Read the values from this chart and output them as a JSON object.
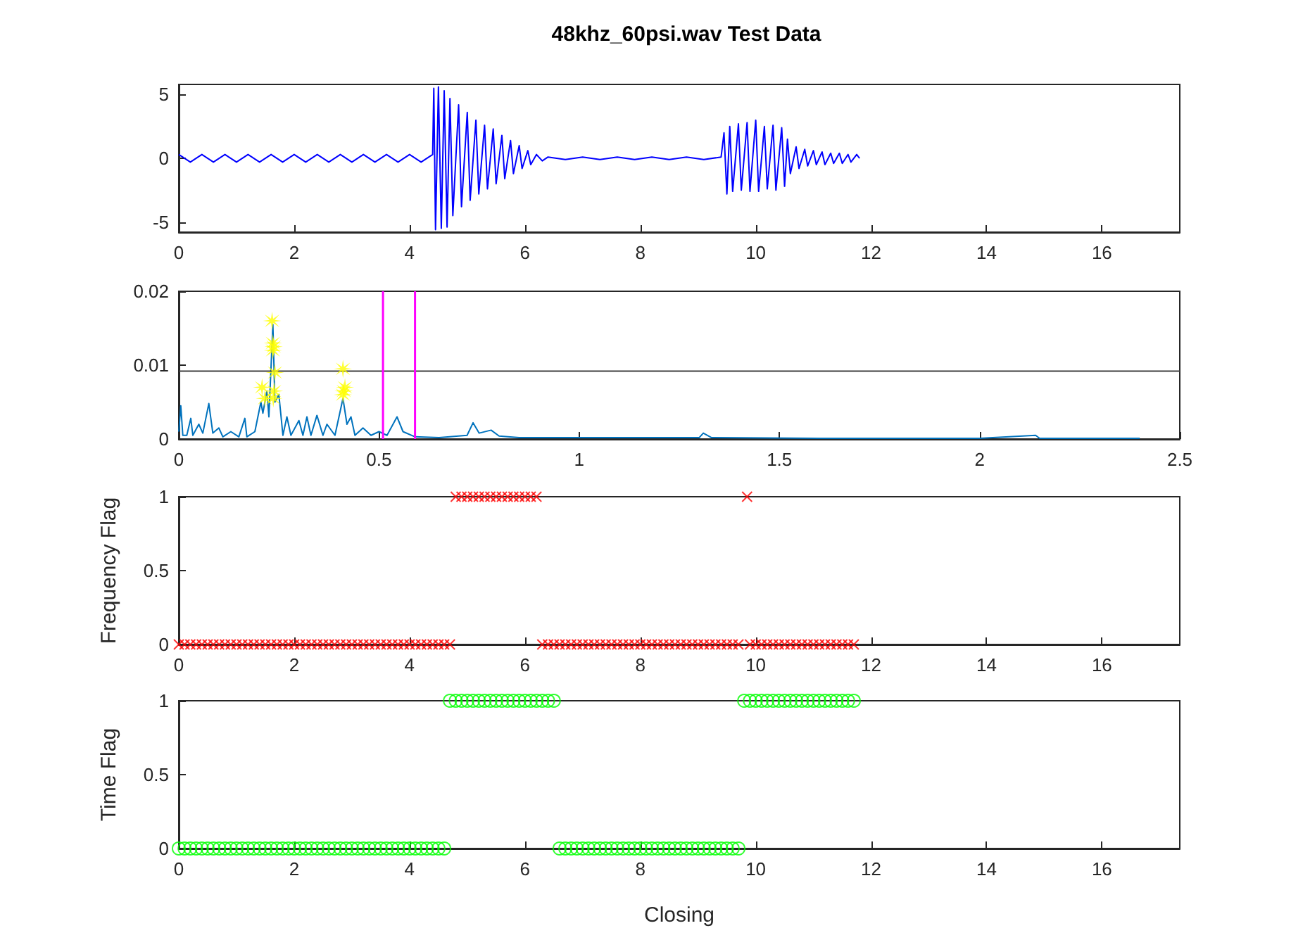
{
  "chart_data": [
    {
      "type": "line",
      "title": "48khz_60psi.wav Test Data",
      "xlim": [
        0,
        17.35
      ],
      "xticks": [
        0,
        2,
        4,
        6,
        8,
        10,
        12,
        14,
        16
      ],
      "ylim": [
        -5.8,
        5.8
      ],
      "yticks": [
        -5,
        0,
        5
      ],
      "series": [
        {
          "color": "#0000ff",
          "marker": "none",
          "x": [
            0,
            0.2,
            0.4,
            0.6,
            0.8,
            1.0,
            1.2,
            1.4,
            1.6,
            1.8,
            2.0,
            2.2,
            2.4,
            2.6,
            2.8,
            3.0,
            3.2,
            3.4,
            3.6,
            3.8,
            4.0,
            4.2,
            4.4,
            4.42,
            4.45,
            4.5,
            4.55,
            4.6,
            4.65,
            4.7,
            4.75,
            4.85,
            4.9,
            5.0,
            5.05,
            5.15,
            5.2,
            5.3,
            5.35,
            5.45,
            5.5,
            5.6,
            5.65,
            5.75,
            5.8,
            5.9,
            5.95,
            6.05,
            6.1,
            6.2,
            6.3,
            6.4,
            6.7,
            7.0,
            7.3,
            7.6,
            7.9,
            8.2,
            8.5,
            8.8,
            9.1,
            9.4,
            9.45,
            9.5,
            9.55,
            9.6,
            9.7,
            9.75,
            9.85,
            9.9,
            10.0,
            10.05,
            10.15,
            10.2,
            10.3,
            10.35,
            10.45,
            10.5,
            10.55,
            10.6,
            10.7,
            10.75,
            10.85,
            10.9,
            11.0,
            11.05,
            11.15,
            11.2,
            11.3,
            11.35,
            11.45,
            11.5,
            11.6,
            11.65,
            11.75,
            11.8
          ],
          "values": [
            0.3,
            -0.3,
            0.3,
            -0.3,
            0.3,
            -0.3,
            0.3,
            -0.3,
            0.3,
            -0.3,
            0.3,
            -0.3,
            0.3,
            -0.3,
            0.3,
            -0.3,
            0.3,
            -0.3,
            0.3,
            -0.3,
            0.3,
            -0.3,
            0.3,
            5.5,
            -5.6,
            5.6,
            -5.5,
            5.3,
            -5.4,
            4.7,
            -4.5,
            4.2,
            -3.8,
            3.6,
            -3.3,
            3.0,
            -2.8,
            2.6,
            -2.4,
            2.3,
            -2.0,
            1.8,
            -1.6,
            1.4,
            -1.2,
            1.0,
            -0.8,
            0.6,
            -0.5,
            0.3,
            -0.2,
            0.1,
            -0.1,
            0.1,
            -0.1,
            0.1,
            -0.1,
            0.1,
            -0.1,
            0.1,
            -0.1,
            0.1,
            2.0,
            -2.8,
            2.5,
            -2.6,
            2.7,
            -2.5,
            2.8,
            -2.6,
            3.0,
            -2.6,
            2.5,
            -2.4,
            2.6,
            -2.5,
            2.4,
            -2.2,
            1.5,
            -1.2,
            0.9,
            -0.8,
            0.7,
            -0.6,
            0.6,
            -0.5,
            0.5,
            -0.5,
            0.4,
            -0.4,
            0.4,
            -0.4,
            0.3,
            -0.3,
            0.3,
            0
          ]
        }
      ]
    },
    {
      "type": "line",
      "xlim": [
        0,
        2.5
      ],
      "xticks": [
        0,
        0.5,
        1,
        1.5,
        2,
        2.5
      ],
      "ylim": [
        0,
        0.02
      ],
      "yticks": [
        0,
        0.01,
        0.02
      ],
      "series": [
        {
          "color": "#0072bd",
          "marker": "none",
          "x": [
            0,
            0.005,
            0.01,
            0.02,
            0.03,
            0.035,
            0.05,
            0.06,
            0.075,
            0.085,
            0.1,
            0.11,
            0.13,
            0.15,
            0.165,
            0.17,
            0.19,
            0.205,
            0.21,
            0.22,
            0.225,
            0.235,
            0.24,
            0.25,
            0.26,
            0.27,
            0.28,
            0.3,
            0.31,
            0.32,
            0.33,
            0.345,
            0.36,
            0.37,
            0.39,
            0.41,
            0.42,
            0.43,
            0.44,
            0.46,
            0.48,
            0.5,
            0.52,
            0.545,
            0.56,
            0.59,
            0.65,
            0.72,
            0.735,
            0.75,
            0.78,
            0.8,
            0.85,
            1.0,
            1.3,
            1.31,
            1.33,
            1.6,
            2.0,
            2.14,
            2.15,
            2.4
          ],
          "values": [
            0.001,
            0.0045,
            0.0005,
            0.0005,
            0.0028,
            0.0005,
            0.002,
            0.0008,
            0.0048,
            0.0008,
            0.0015,
            0.0003,
            0.001,
            0.0003,
            0.0028,
            0.0003,
            0.001,
            0.005,
            0.0035,
            0.0065,
            0.003,
            0.0155,
            0.005,
            0.006,
            0.0005,
            0.003,
            0.0005,
            0.0025,
            0.0005,
            0.003,
            0.0005,
            0.0032,
            0.0005,
            0.002,
            0.0005,
            0.0055,
            0.002,
            0.003,
            0.0005,
            0.0015,
            0.0005,
            0.001,
            0.0005,
            0.003,
            0.001,
            0.0003,
            0.0002,
            0.0005,
            0.0022,
            0.0008,
            0.0012,
            0.0004,
            0.0002,
            0.0002,
            0.0002,
            0.0008,
            0.0002,
            0.0001,
            0.0001,
            0.0005,
            0.0001,
            0.0001
          ]
        },
        {
          "type": "scatter",
          "color": "#ffff00",
          "marker": "star",
          "x": [
            0.208,
            0.215,
            0.233,
            0.235,
            0.237,
            0.235,
            0.24,
            0.238,
            0.236,
            0.41,
            0.415,
            0.41,
            0.412
          ],
          "values": [
            0.007,
            0.0055,
            0.016,
            0.013,
            0.0125,
            0.012,
            0.009,
            0.0065,
            0.0055,
            0.0095,
            0.007,
            0.006,
            0.0065
          ]
        }
      ],
      "ref_lines": [
        {
          "axis": "y",
          "value": 0.0092,
          "color": "#404040"
        },
        {
          "axis": "x",
          "value": 0.51,
          "color": "#ff00ff"
        },
        {
          "axis": "x",
          "value": 0.59,
          "color": "#ff00ff"
        }
      ]
    },
    {
      "type": "scatter",
      "ylabel": "Frequency Flag",
      "xlim": [
        0,
        17.35
      ],
      "xticks": [
        0,
        2,
        4,
        6,
        8,
        10,
        12,
        14,
        16
      ],
      "ylim": [
        0,
        1
      ],
      "yticks": [
        0,
        0.5,
        1
      ],
      "marker": "cross",
      "series": [
        {
          "color": "#ff0000",
          "x": [
            0,
            0.1,
            0.2,
            0.3,
            0.4,
            0.5,
            0.6,
            0.7,
            0.8,
            0.9,
            1.0,
            1.1,
            1.2,
            1.3,
            1.4,
            1.5,
            1.6,
            1.7,
            1.8,
            1.9,
            2.0,
            2.1,
            2.2,
            2.3,
            2.4,
            2.5,
            2.6,
            2.7,
            2.8,
            2.9,
            3.0,
            3.1,
            3.2,
            3.3,
            3.4,
            3.5,
            3.6,
            3.7,
            3.8,
            3.9,
            4.0,
            4.1,
            4.2,
            4.3,
            4.4,
            4.5,
            4.6,
            4.7,
            4.8,
            4.9,
            5.0,
            5.1,
            5.2,
            5.3,
            5.4,
            5.5,
            5.6,
            5.7,
            5.8,
            5.9,
            6.0,
            6.1,
            6.2,
            6.3,
            6.4,
            6.5,
            6.6,
            6.7,
            6.8,
            6.9,
            7.0,
            7.1,
            7.2,
            7.3,
            7.4,
            7.5,
            7.6,
            7.7,
            7.8,
            7.9,
            8.0,
            8.1,
            8.2,
            8.3,
            8.4,
            8.5,
            8.6,
            8.7,
            8.8,
            8.9,
            9.0,
            9.1,
            9.2,
            9.3,
            9.4,
            9.5,
            9.6,
            9.7,
            9.85,
            9.9,
            10.0,
            10.1,
            10.2,
            10.3,
            10.4,
            10.5,
            10.6,
            10.7,
            10.8,
            10.9,
            11.0,
            11.1,
            11.2,
            11.3,
            11.4,
            11.5,
            11.6,
            11.7
          ],
          "values": [
            0,
            0,
            0,
            0,
            0,
            0,
            0,
            0,
            0,
            0,
            0,
            0,
            0,
            0,
            0,
            0,
            0,
            0,
            0,
            0,
            0,
            0,
            0,
            0,
            0,
            0,
            0,
            0,
            0,
            0,
            0,
            0,
            0,
            0,
            0,
            0,
            0,
            0,
            0,
            0,
            0,
            0,
            0,
            0,
            0,
            0,
            0,
            0,
            1,
            1,
            1,
            1,
            1,
            1,
            1,
            1,
            1,
            1,
            1,
            1,
            1,
            1,
            1,
            0,
            0,
            0,
            0,
            0,
            0,
            0,
            0,
            0,
            0,
            0,
            0,
            0,
            0,
            0,
            0,
            0,
            0,
            0,
            0,
            0,
            0,
            0,
            0,
            0,
            0,
            0,
            0,
            0,
            0,
            0,
            0,
            0,
            0,
            0,
            1,
            0,
            0,
            0,
            0,
            0,
            0,
            0,
            0,
            0,
            0,
            0,
            0,
            0,
            0,
            0,
            0,
            0,
            0,
            0
          ]
        }
      ]
    },
    {
      "type": "scatter",
      "ylabel": "Time Flag",
      "xlabel": "Closing",
      "xlim": [
        0,
        17.35
      ],
      "xticks": [
        0,
        2,
        4,
        6,
        8,
        10,
        12,
        14,
        16
      ],
      "ylim": [
        0,
        1
      ],
      "yticks": [
        0,
        0.5,
        1
      ],
      "marker": "circle",
      "series": [
        {
          "color": "#00ff00",
          "x": [
            0,
            0.1,
            0.2,
            0.3,
            0.4,
            0.5,
            0.6,
            0.7,
            0.8,
            0.9,
            1.0,
            1.1,
            1.2,
            1.3,
            1.4,
            1.5,
            1.6,
            1.7,
            1.8,
            1.9,
            2.0,
            2.1,
            2.2,
            2.3,
            2.4,
            2.5,
            2.6,
            2.7,
            2.8,
            2.9,
            3.0,
            3.1,
            3.2,
            3.3,
            3.4,
            3.5,
            3.6,
            3.7,
            3.8,
            3.9,
            4.0,
            4.1,
            4.2,
            4.3,
            4.4,
            4.5,
            4.6,
            4.7,
            4.8,
            4.9,
            5.0,
            5.1,
            5.2,
            5.3,
            5.4,
            5.5,
            5.6,
            5.7,
            5.8,
            5.9,
            6.0,
            6.1,
            6.2,
            6.3,
            6.4,
            6.5,
            6.6,
            6.7,
            6.8,
            6.9,
            7.0,
            7.1,
            7.2,
            7.3,
            7.4,
            7.5,
            7.6,
            7.7,
            7.8,
            7.9,
            8.0,
            8.1,
            8.2,
            8.3,
            8.4,
            8.5,
            8.6,
            8.7,
            8.8,
            8.9,
            9.0,
            9.1,
            9.2,
            9.3,
            9.4,
            9.5,
            9.6,
            9.7,
            9.8,
            9.9,
            10.0,
            10.1,
            10.2,
            10.3,
            10.4,
            10.5,
            10.6,
            10.7,
            10.8,
            10.9,
            11.0,
            11.1,
            11.2,
            11.3,
            11.4,
            11.5,
            11.6,
            11.7
          ],
          "values": [
            0,
            0,
            0,
            0,
            0,
            0,
            0,
            0,
            0,
            0,
            0,
            0,
            0,
            0,
            0,
            0,
            0,
            0,
            0,
            0,
            0,
            0,
            0,
            0,
            0,
            0,
            0,
            0,
            0,
            0,
            0,
            0,
            0,
            0,
            0,
            0,
            0,
            0,
            0,
            0,
            0,
            0,
            0,
            0,
            0,
            0,
            0,
            1,
            1,
            1,
            1,
            1,
            1,
            1,
            1,
            1,
            1,
            1,
            1,
            1,
            1,
            1,
            1,
            1,
            1,
            1,
            0,
            0,
            0,
            0,
            0,
            0,
            0,
            0,
            0,
            0,
            0,
            0,
            0,
            0,
            0,
            0,
            0,
            0,
            0,
            0,
            0,
            0,
            0,
            0,
            0,
            0,
            0,
            0,
            0,
            0,
            0,
            0,
            1,
            1,
            1,
            1,
            1,
            1,
            1,
            1,
            1,
            1,
            1,
            1,
            1,
            1,
            1,
            1,
            1,
            1,
            1,
            1
          ]
        }
      ]
    }
  ]
}
